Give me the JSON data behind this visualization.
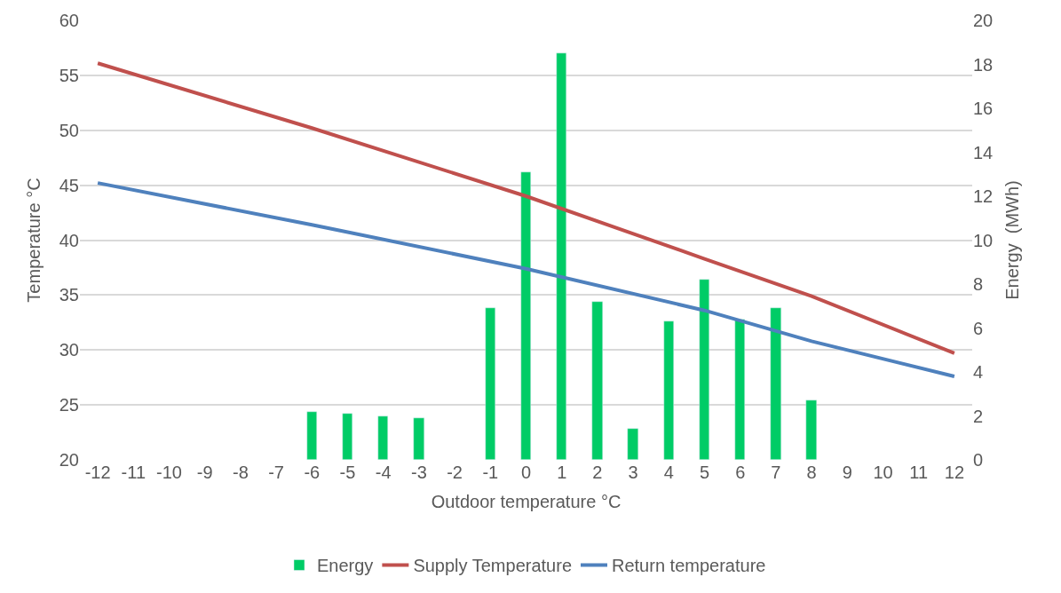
{
  "chart_data": {
    "type": "line",
    "xlabel": "Outdoor temperature °C",
    "ylabel": "Temperature °C",
    "y2label": "Energy  (MWh)",
    "xlim": [
      -12.5,
      12.5
    ],
    "xticks": [
      -12,
      -11,
      -10,
      -9,
      -8,
      -7,
      -6,
      -5,
      -4,
      -3,
      -2,
      -1,
      0,
      1,
      2,
      3,
      4,
      5,
      6,
      7,
      8,
      9,
      10,
      11,
      12
    ],
    "ylim": [
      20,
      60
    ],
    "yticks": [
      20,
      25,
      30,
      35,
      40,
      45,
      50,
      55,
      60
    ],
    "y2lim": [
      0,
      20
    ],
    "y2ticks": [
      0,
      2,
      4,
      6,
      8,
      10,
      12,
      14,
      16,
      18,
      20
    ],
    "grid": "y",
    "legend": "bottom",
    "marker": "none",
    "line_style": "solid",
    "series": [
      {
        "name": "Energy",
        "type": "bar",
        "axis": "y2",
        "color": "#00cc66",
        "x": [
          -6,
          -5,
          -4,
          -3,
          -1,
          0,
          1,
          2,
          3,
          4,
          5,
          6,
          7,
          8
        ],
        "values": [
          2.2,
          2.1,
          2.0,
          1.9,
          6.9,
          13.1,
          18.5,
          7.2,
          1.4,
          6.3,
          8.2,
          6.4,
          6.9,
          2.7
        ]
      },
      {
        "name": "Supply Temperature",
        "color": "#c0504d",
        "x": [
          -12,
          -6,
          0,
          5,
          8,
          12
        ],
        "values": [
          56.1,
          50.2,
          44.0,
          38.3,
          34.9,
          29.7
        ]
      },
      {
        "name": "Return temperature",
        "color": "#4f81bd",
        "x": [
          -12,
          -6,
          0,
          5,
          8,
          12
        ],
        "values": [
          45.2,
          41.4,
          37.4,
          33.6,
          30.8,
          27.6
        ]
      }
    ]
  }
}
